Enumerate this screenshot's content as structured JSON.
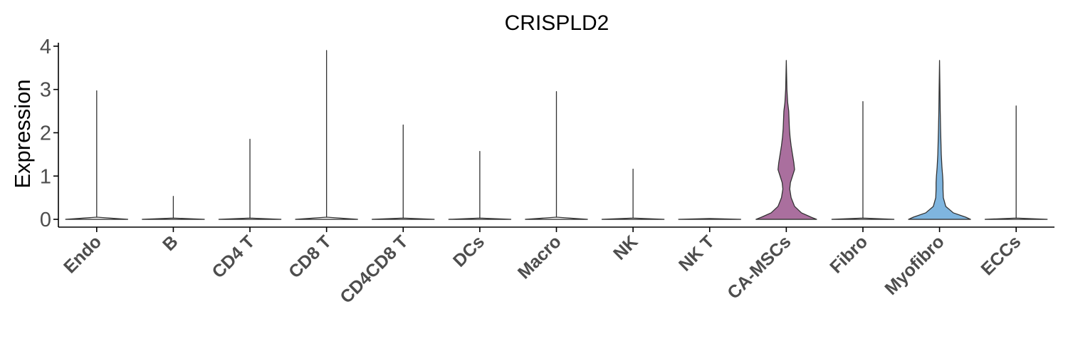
{
  "chart_data": {
    "type": "violin",
    "title": "CRISPLD2",
    "xlabel": "",
    "ylabel": "Expression",
    "ylim": [
      -0.18,
      4.08
    ],
    "yticks": [
      0,
      1,
      2,
      3,
      4
    ],
    "grid": false,
    "legend": "none",
    "categories": [
      "Endo",
      "B",
      "CD4 T",
      "CD8 T",
      "CD4CD8 T",
      "DCs",
      "Macro",
      "NK",
      "NK T",
      "CA-MSCs",
      "Fibro",
      "Myofibro",
      "ECCs"
    ],
    "series": [
      {
        "category": "Endo",
        "max": 2.97,
        "color": "#ffffff",
        "density": [
          [
            0,
            0.45
          ],
          [
            0.05,
            0.0
          ]
        ]
      },
      {
        "category": "B",
        "max": 0.53,
        "color": "#ffffff",
        "density": [
          [
            0,
            0.45
          ],
          [
            0.03,
            0.0
          ]
        ]
      },
      {
        "category": "CD4 T",
        "max": 1.85,
        "color": "#ffffff",
        "density": [
          [
            0,
            0.45
          ],
          [
            0.03,
            0.0
          ]
        ]
      },
      {
        "category": "CD8 T",
        "max": 3.9,
        "color": "#ffffff",
        "density": [
          [
            0,
            0.45
          ],
          [
            0.05,
            0.0
          ]
        ]
      },
      {
        "category": "CD4CD8 T",
        "max": 2.18,
        "color": "#ffffff",
        "density": [
          [
            0,
            0.45
          ],
          [
            0.03,
            0.0
          ]
        ]
      },
      {
        "category": "DCs",
        "max": 1.57,
        "color": "#ffffff",
        "density": [
          [
            0,
            0.45
          ],
          [
            0.03,
            0.0
          ]
        ]
      },
      {
        "category": "Macro",
        "max": 2.95,
        "color": "#ffffff",
        "density": [
          [
            0,
            0.45
          ],
          [
            0.05,
            0.0
          ]
        ]
      },
      {
        "category": "NK",
        "max": 1.16,
        "color": "#ffffff",
        "density": [
          [
            0,
            0.45
          ],
          [
            0.03,
            0.0
          ]
        ]
      },
      {
        "category": "NK T",
        "max": 0.0,
        "color": "#ffffff",
        "density": [
          [
            0,
            0.45
          ],
          [
            0.02,
            0.0
          ]
        ]
      },
      {
        "category": "CA-MSCs",
        "max": 3.67,
        "color": "#aa6f9e",
        "density": [
          [
            0.0,
            0.44
          ],
          [
            0.05,
            0.36
          ],
          [
            0.15,
            0.22
          ],
          [
            0.3,
            0.12
          ],
          [
            0.5,
            0.07
          ],
          [
            0.7,
            0.05
          ],
          [
            0.85,
            0.06
          ],
          [
            1.0,
            0.09
          ],
          [
            1.15,
            0.12
          ],
          [
            1.3,
            0.11
          ],
          [
            1.5,
            0.09
          ],
          [
            1.7,
            0.07
          ],
          [
            1.9,
            0.055
          ],
          [
            2.1,
            0.045
          ],
          [
            2.3,
            0.04
          ],
          [
            2.5,
            0.035
          ],
          [
            2.7,
            0.02
          ],
          [
            3.0,
            0.009
          ],
          [
            3.3,
            0.005
          ],
          [
            3.67,
            0.0
          ]
        ]
      },
      {
        "category": "Fibro",
        "max": 2.72,
        "color": "#ffffff",
        "density": [
          [
            0,
            0.45
          ],
          [
            0.03,
            0.0
          ]
        ]
      },
      {
        "category": "Myofibro",
        "max": 3.67,
        "color": "#7fb5df",
        "density": [
          [
            0.0,
            0.45
          ],
          [
            0.05,
            0.38
          ],
          [
            0.15,
            0.2
          ],
          [
            0.3,
            0.09
          ],
          [
            0.5,
            0.055
          ],
          [
            0.7,
            0.05
          ],
          [
            0.85,
            0.05
          ],
          [
            1.0,
            0.045
          ],
          [
            1.2,
            0.035
          ],
          [
            1.5,
            0.025
          ],
          [
            1.8,
            0.02
          ],
          [
            2.1,
            0.015
          ],
          [
            2.5,
            0.01
          ],
          [
            3.0,
            0.006
          ],
          [
            3.67,
            0.0
          ]
        ]
      },
      {
        "category": "ECCs",
        "max": 2.62,
        "color": "#ffffff",
        "density": [
          [
            0,
            0.45
          ],
          [
            0.03,
            0.0
          ]
        ]
      }
    ]
  }
}
